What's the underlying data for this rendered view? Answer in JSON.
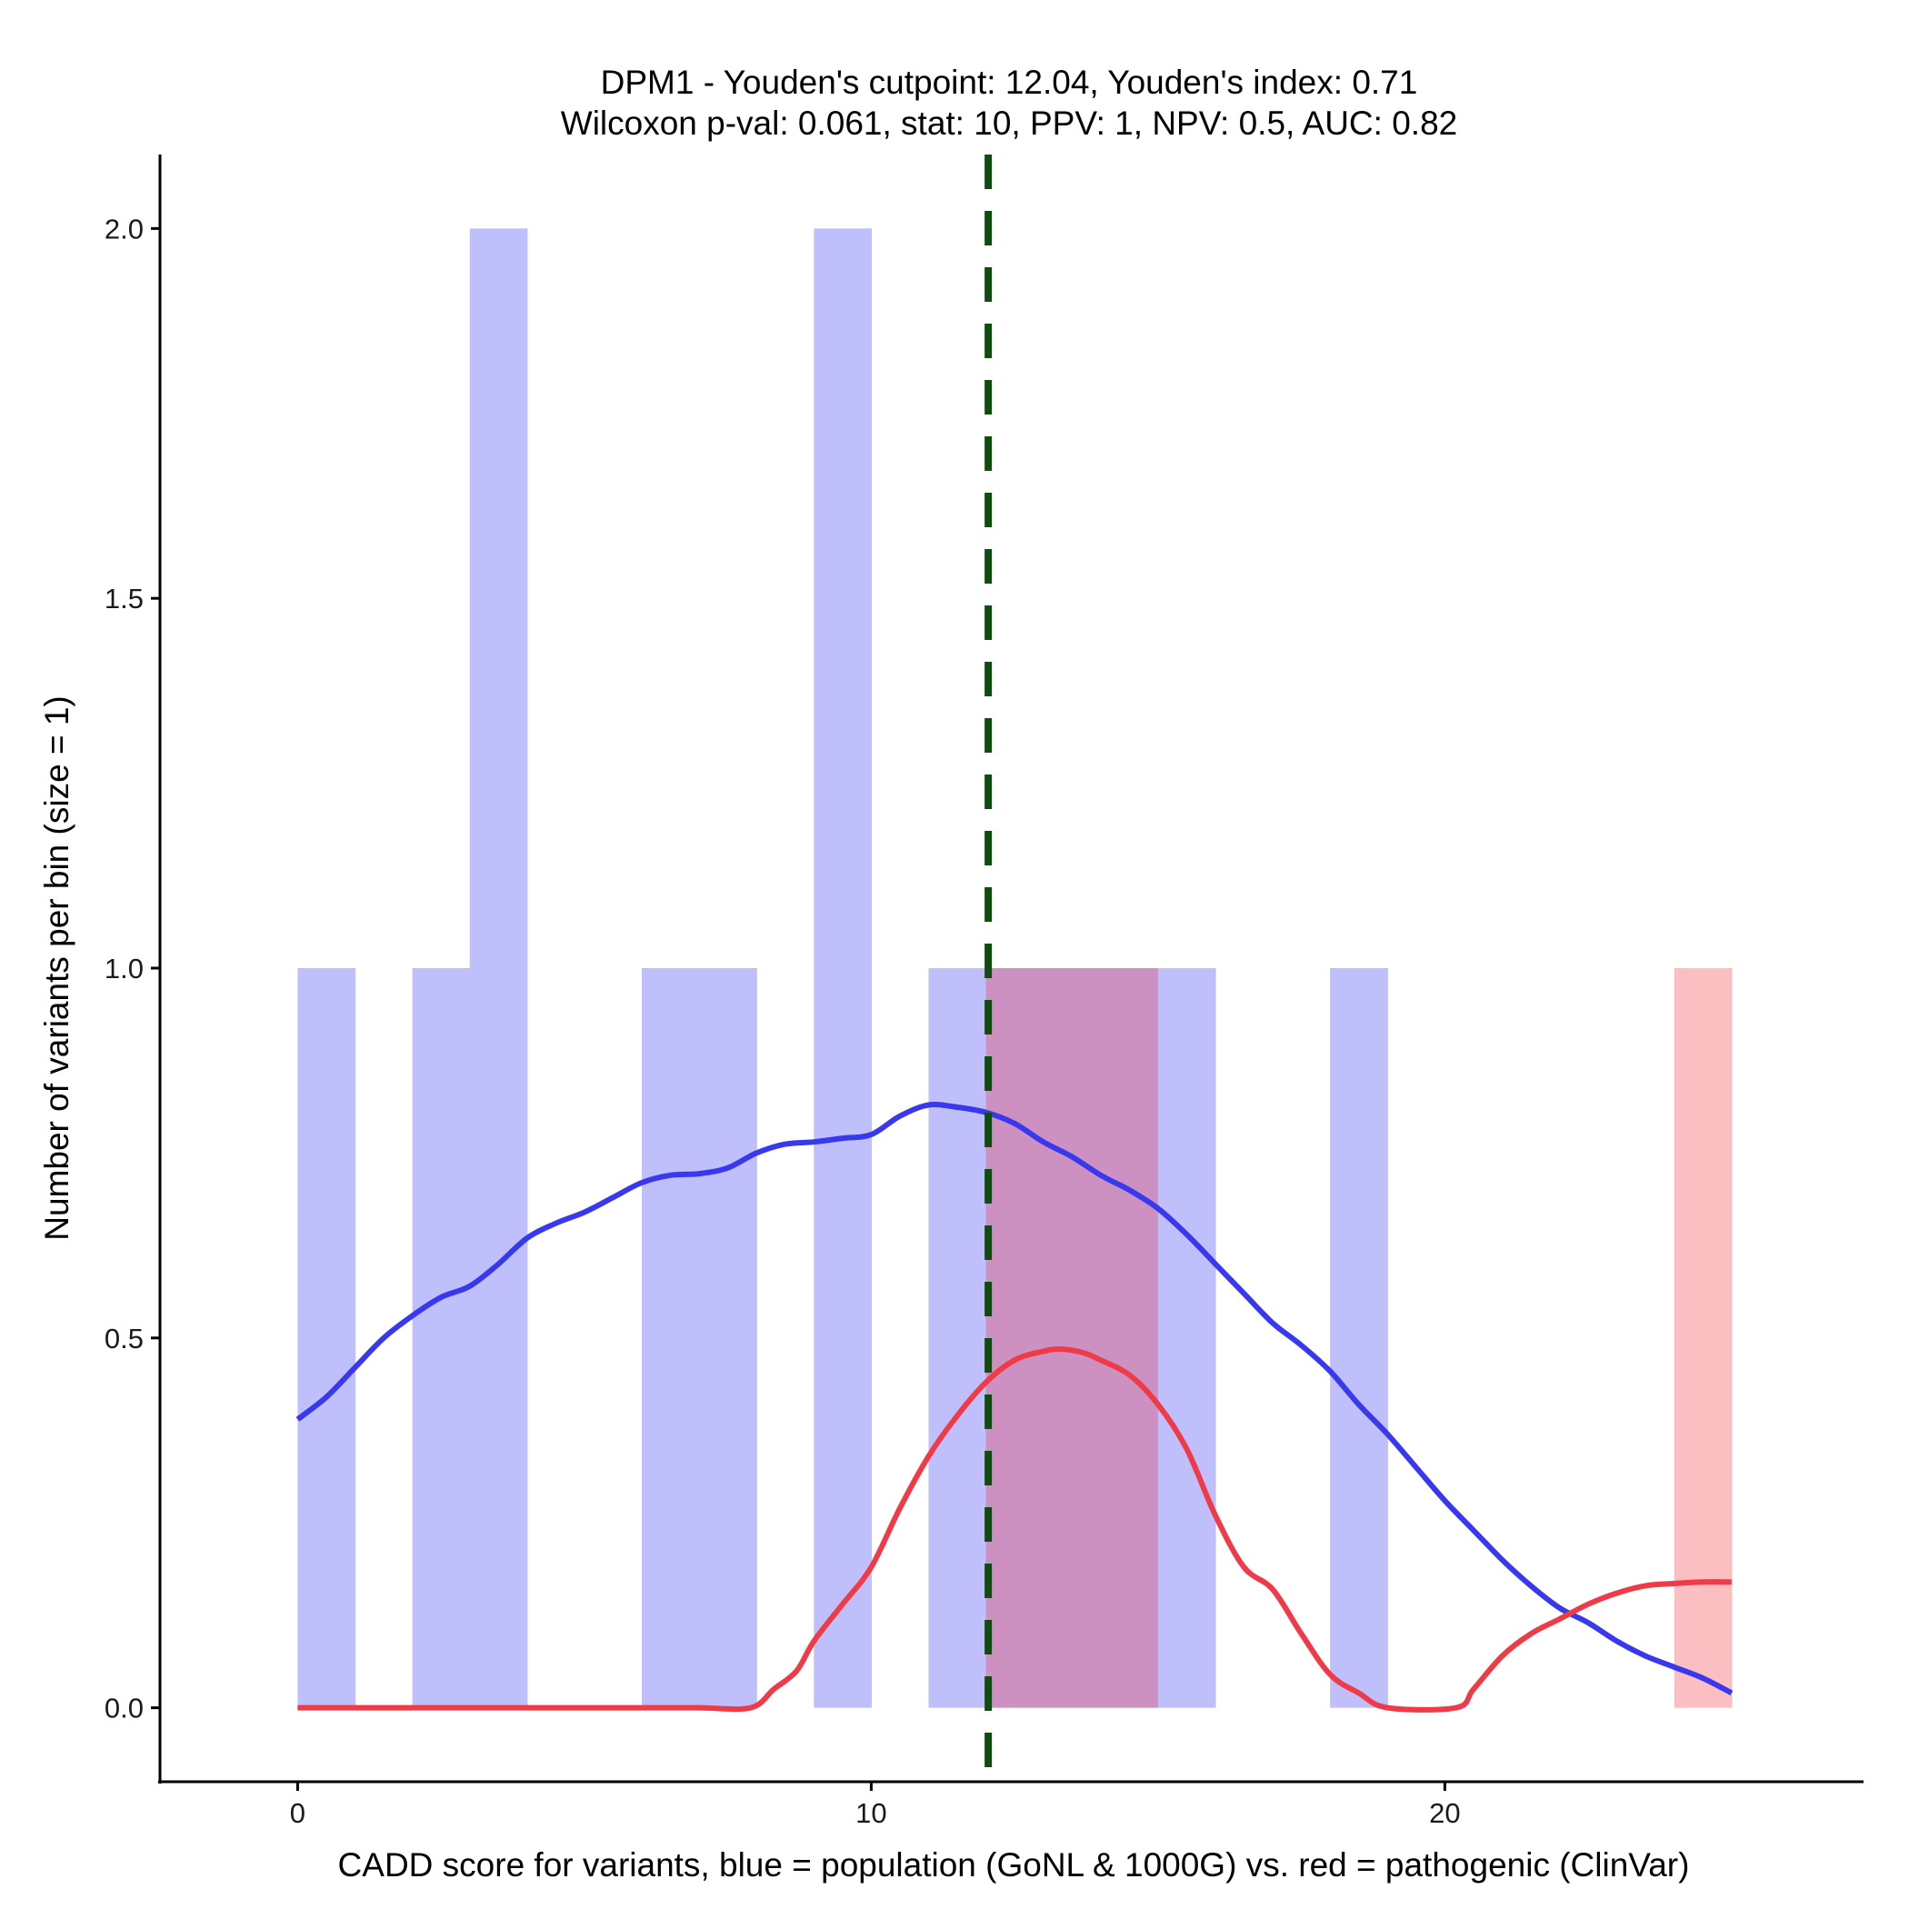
{
  "chart_data": {
    "type": "bar",
    "title_line1": "DPM1 - Youden's cutpoint: 12.04, Youden's index: 0.71",
    "title_line2": "Wilcoxon p-val: 0.061, stat: 10, PPV: 1, NPV: 0.5, AUC: 0.82",
    "xlabel": "CADD score for variants, blue = population (GoNL & 1000G) vs. red = pathogenic (ClinVar)",
    "ylabel": "Number of variants per bin (size = 1)",
    "xlim": [
      -2.4,
      27.3
    ],
    "ylim": [
      -0.1,
      2.1
    ],
    "x_ticks": [
      0,
      10,
      20
    ],
    "x_tick_labels": [
      "0",
      "10",
      "20"
    ],
    "y_ticks": [
      0,
      0.5,
      1,
      1.5,
      2
    ],
    "y_tick_labels": [
      "0.0",
      "0.5",
      "1.0",
      "1.5",
      "2.0"
    ],
    "cutpoint": 12.04,
    "colors": {
      "population_bar": "#bfbffb",
      "pathogenic_bar": "#fcbfc1",
      "overlap_bar": "#cd91c1",
      "population_line": "#3838ee",
      "pathogenic_line": "#ef3a48",
      "cutpoint_line": "#0e4d0e",
      "axis": "#000000"
    },
    "series": [
      {
        "name": "population (GoNL & 1000G)",
        "bins": [
          {
            "x0": 0,
            "x1": 1,
            "count": 1
          },
          {
            "x0": 2,
            "x1": 3,
            "count": 1
          },
          {
            "x0": 3,
            "x1": 4,
            "count": 2
          },
          {
            "x0": 6,
            "x1": 7,
            "count": 1
          },
          {
            "x0": 7,
            "x1": 8,
            "count": 1
          },
          {
            "x0": 9,
            "x1": 10,
            "count": 2
          },
          {
            "x0": 11,
            "x1": 12,
            "count": 1
          },
          {
            "x0": 12,
            "x1": 13,
            "count": 1
          },
          {
            "x0": 13,
            "x1": 14,
            "count": 1
          },
          {
            "x0": 14,
            "x1": 15,
            "count": 1
          },
          {
            "x0": 15,
            "x1": 16,
            "count": 1
          },
          {
            "x0": 18,
            "x1": 19,
            "count": 1
          }
        ],
        "density": [
          [
            0,
            0.39
          ],
          [
            0.5,
            0.42
          ],
          [
            1,
            0.46
          ],
          [
            1.5,
            0.5
          ],
          [
            2,
            0.53
          ],
          [
            2.5,
            0.555
          ],
          [
            3,
            0.57
          ],
          [
            3.5,
            0.6
          ],
          [
            4,
            0.635
          ],
          [
            4.5,
            0.655
          ],
          [
            5,
            0.67
          ],
          [
            5.5,
            0.69
          ],
          [
            6,
            0.71
          ],
          [
            6.5,
            0.72
          ],
          [
            7,
            0.722
          ],
          [
            7.5,
            0.73
          ],
          [
            8,
            0.75
          ],
          [
            8.5,
            0.762
          ],
          [
            9,
            0.765
          ],
          [
            9.5,
            0.77
          ],
          [
            10,
            0.775
          ],
          [
            10.5,
            0.8
          ],
          [
            11,
            0.815
          ],
          [
            11.5,
            0.812
          ],
          [
            12,
            0.805
          ],
          [
            12.5,
            0.79
          ],
          [
            13,
            0.765
          ],
          [
            13.5,
            0.745
          ],
          [
            14,
            0.72
          ],
          [
            14.5,
            0.7
          ],
          [
            15,
            0.675
          ],
          [
            15.5,
            0.64
          ],
          [
            16,
            0.6
          ],
          [
            16.5,
            0.56
          ],
          [
            17,
            0.52
          ],
          [
            17.5,
            0.49
          ],
          [
            18,
            0.455
          ],
          [
            18.5,
            0.41
          ],
          [
            19,
            0.37
          ],
          [
            19.5,
            0.325
          ],
          [
            20,
            0.28
          ],
          [
            20.5,
            0.24
          ],
          [
            21,
            0.2
          ],
          [
            21.5,
            0.165
          ],
          [
            22,
            0.135
          ],
          [
            22.5,
            0.115
          ],
          [
            23,
            0.09
          ],
          [
            23.5,
            0.07
          ],
          [
            24,
            0.055
          ],
          [
            24.5,
            0.04
          ],
          [
            25,
            0.02
          ]
        ]
      },
      {
        "name": "pathogenic (ClinVar)",
        "bins": [
          {
            "x0": 12,
            "x1": 13,
            "count": 1
          },
          {
            "x0": 13,
            "x1": 14,
            "count": 1
          },
          {
            "x0": 14,
            "x1": 15,
            "count": 1
          },
          {
            "x0": 24,
            "x1": 25,
            "count": 1
          }
        ],
        "density": [
          [
            0,
            0
          ],
          [
            1,
            0
          ],
          [
            2,
            0
          ],
          [
            3,
            0
          ],
          [
            4,
            0
          ],
          [
            5,
            0
          ],
          [
            6,
            0
          ],
          [
            7,
            0
          ],
          [
            7.9,
            0
          ],
          [
            8.3,
            0.025
          ],
          [
            8.7,
            0.05
          ],
          [
            9,
            0.09
          ],
          [
            9.5,
            0.14
          ],
          [
            10,
            0.19
          ],
          [
            10.5,
            0.27
          ],
          [
            11,
            0.34
          ],
          [
            11.5,
            0.395
          ],
          [
            12,
            0.44
          ],
          [
            12.5,
            0.47
          ],
          [
            13,
            0.482
          ],
          [
            13.3,
            0.485
          ],
          [
            13.7,
            0.48
          ],
          [
            14,
            0.47
          ],
          [
            14.5,
            0.45
          ],
          [
            15,
            0.41
          ],
          [
            15.5,
            0.35
          ],
          [
            16,
            0.26
          ],
          [
            16.5,
            0.19
          ],
          [
            17,
            0.16
          ],
          [
            17.5,
            0.1
          ],
          [
            18,
            0.045
          ],
          [
            18.5,
            0.02
          ],
          [
            19,
            0.0
          ],
          [
            20.2,
            0.0
          ],
          [
            20.5,
            0.025
          ],
          [
            21,
            0.07
          ],
          [
            21.5,
            0.1
          ],
          [
            22,
            0.12
          ],
          [
            22.5,
            0.14
          ],
          [
            23,
            0.155
          ],
          [
            23.5,
            0.165
          ],
          [
            24,
            0.168
          ],
          [
            24.5,
            0.17
          ],
          [
            25,
            0.17
          ]
        ]
      }
    ]
  }
}
